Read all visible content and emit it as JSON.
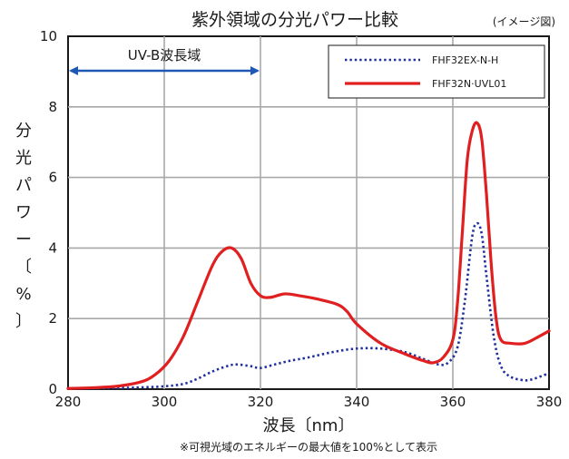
{
  "chart_data": {
    "type": "line",
    "title": "紫外領域の分光パワー比較",
    "subtitle": "(イメージ図)",
    "xlabel": "波長〔nm〕",
    "ylabel": "分光パワー〔%〕",
    "xlim": [
      280,
      380
    ],
    "ylim": [
      0,
      10
    ],
    "xticks": [
      280,
      300,
      320,
      340,
      360,
      380
    ],
    "yticks": [
      0,
      2,
      4,
      6,
      8,
      10
    ],
    "grid": true,
    "legend_position": "top-right",
    "annotation": {
      "text": "UV-B波長域",
      "x_start": 280,
      "x_end": 320
    },
    "note": "※可視光域のエネルギーの最大値を100%として表示",
    "series": [
      {
        "name": "FHF32EX-N-H",
        "color": "#1f2f9e",
        "style": "dotted",
        "x": [
          280,
          290,
          295,
          300,
          304,
          307,
          310,
          313,
          315,
          318,
          320,
          323,
          326,
          330,
          335,
          340,
          345,
          350,
          354,
          357,
          359,
          361,
          362.5,
          364,
          365,
          366,
          367,
          368.5,
          370,
          372,
          375,
          377,
          379,
          380
        ],
        "y": [
          0.02,
          0.03,
          0.05,
          0.08,
          0.15,
          0.3,
          0.5,
          0.65,
          0.7,
          0.65,
          0.6,
          0.7,
          0.8,
          0.9,
          1.05,
          1.15,
          1.15,
          1.05,
          0.85,
          0.7,
          0.75,
          1.2,
          2.5,
          4.3,
          4.7,
          4.4,
          3.2,
          1.5,
          0.65,
          0.35,
          0.25,
          0.3,
          0.4,
          0.45
        ]
      },
      {
        "name": "FHF32N·UVL01",
        "color": "#e02020",
        "style": "solid",
        "x": [
          280,
          285,
          290,
          295,
          298,
          301,
          304,
          307,
          310,
          312,
          314,
          316,
          318,
          320,
          322,
          325,
          328,
          332,
          336,
          338,
          340,
          345,
          350,
          354,
          356,
          358,
          360,
          361,
          362,
          363,
          364,
          365,
          366,
          367,
          368,
          369,
          370,
          372,
          375,
          378,
          380
        ],
        "y": [
          0.02,
          0.04,
          0.08,
          0.2,
          0.4,
          0.8,
          1.5,
          2.5,
          3.5,
          3.9,
          4.0,
          3.7,
          3.0,
          2.65,
          2.6,
          2.7,
          2.65,
          2.55,
          2.4,
          2.2,
          1.85,
          1.3,
          1.0,
          0.8,
          0.75,
          0.9,
          1.4,
          2.5,
          4.5,
          6.5,
          7.3,
          7.55,
          7.1,
          5.5,
          3.5,
          2.0,
          1.4,
          1.3,
          1.3,
          1.5,
          1.65
        ]
      }
    ]
  }
}
